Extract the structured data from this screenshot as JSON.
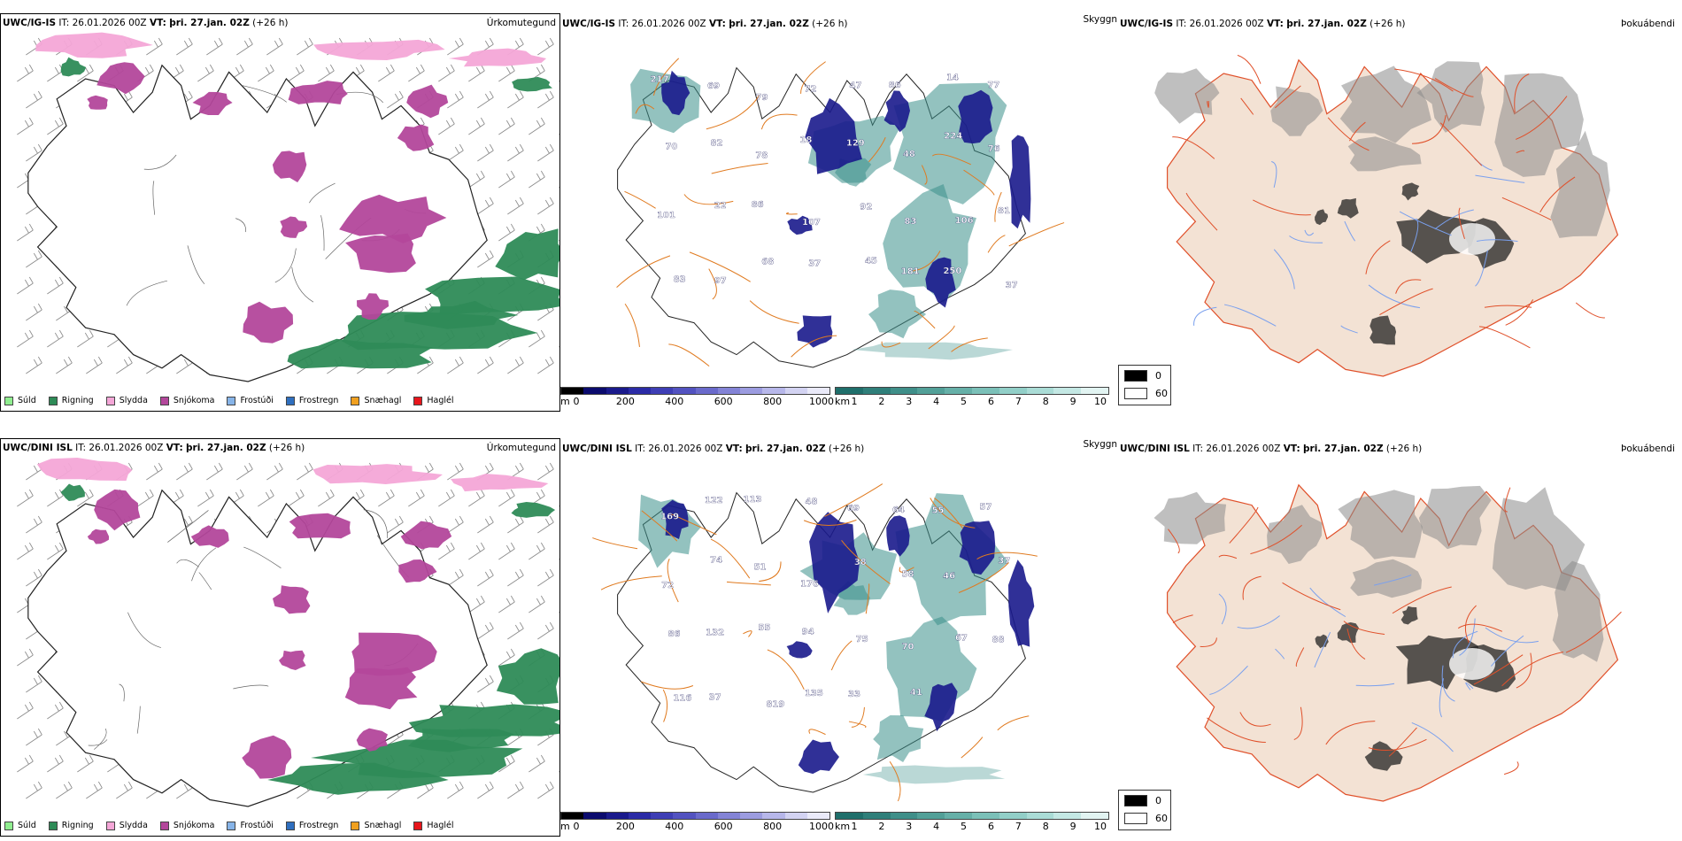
{
  "rows": [
    {
      "model": "UWC/IG-IS",
      "it_label": "IT:",
      "it_value": "26.01.2026 00Z",
      "vt_label": "VT:",
      "vt_value": "þri. 27.jan. 02Z",
      "lead": "(+26 h)"
    },
    {
      "model": "UWC/DINI ISL",
      "it_label": "IT:",
      "it_value": "26.01.2026 00Z",
      "vt_label": "VT:",
      "vt_value": "þri. 27.jan. 02Z",
      "lead": "(+26 h)"
    }
  ],
  "panel_titles": {
    "precip": "Úrkomutegund",
    "visibility": "Skyggni",
    "fog": "Þokuábendi"
  },
  "precip_legend": [
    {
      "label": "Súld",
      "color": "#90ee90"
    },
    {
      "label": "Rigning",
      "color": "#2e8b57"
    },
    {
      "label": "Slydda",
      "color": "#f4a6d7"
    },
    {
      "label": "Snjókoma",
      "color": "#b3479b"
    },
    {
      "label": "Frostúði",
      "color": "#87b4e8"
    },
    {
      "label": "Frostregn",
      "color": "#2f6fbf"
    },
    {
      "label": "Snæhagl",
      "color": "#f0a020"
    },
    {
      "label": "Haglél",
      "color": "#e8161c"
    }
  ],
  "height_bar": {
    "unit": "m",
    "ticks": [
      "0",
      "200",
      "400",
      "600",
      "800",
      "1000"
    ],
    "colors": [
      "#000000",
      "#0b0b6e",
      "#1a1a8c",
      "#2b2ba6",
      "#3e3eb5",
      "#5252c0",
      "#6a6acb",
      "#8383d6",
      "#9c9ce0",
      "#b7b7ea",
      "#d3d3f2",
      "#eaeaf9"
    ]
  },
  "visibility_bar": {
    "unit": "km",
    "ticks": [
      "1",
      "2",
      "3",
      "4",
      "5",
      "6",
      "7",
      "8",
      "9",
      "10"
    ],
    "colors": [
      "#1f6f6b",
      "#2f7f7a",
      "#3f8f89",
      "#52a098",
      "#66b0a8",
      "#7bc0b8",
      "#92cfc8",
      "#aadcd6",
      "#c4e8e4",
      "#e2f4f2"
    ]
  },
  "fog_legend": {
    "items": [
      {
        "value": "0",
        "color": "#000000"
      },
      {
        "value": "60",
        "color": "#ffffff"
      }
    ]
  },
  "visibility_labels": {
    "top": [
      "217",
      "69",
      "79",
      "72",
      "47",
      "86",
      "14",
      "77",
      "70",
      "82",
      "78",
      "18",
      "129",
      "48",
      "224",
      "76",
      "101",
      "22",
      "86",
      "107",
      "92",
      "83",
      "106",
      "81",
      "83",
      "97",
      "68",
      "37",
      "45",
      "181",
      "250",
      "37"
    ],
    "bottom": [
      "169",
      "122",
      "113",
      "48",
      "69",
      "64",
      "55",
      "57",
      "72",
      "74",
      "51",
      "176",
      "38",
      "58",
      "46",
      "37",
      "86",
      "132",
      "55",
      "94",
      "75",
      "70",
      "67",
      "88",
      "116",
      "37",
      "819",
      "135",
      "33",
      "41"
    ]
  },
  "colors": {
    "coast": "#222222",
    "roads": "#e07a1f",
    "land_fog": "#f3e2d4",
    "fog_roads": "#e0502a",
    "rivers": "#7aa0ee",
    "rain": "#2e8b57",
    "snow": "#b3479b",
    "sleet": "#f4a6d7",
    "vis_teal": "#3a8f8a",
    "vis_blue": "#1a1a8c"
  }
}
